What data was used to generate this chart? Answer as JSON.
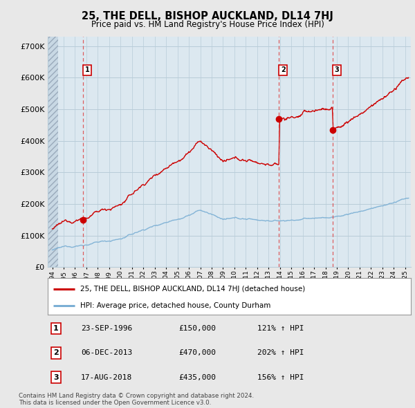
{
  "title": "25, THE DELL, BISHOP AUCKLAND, DL14 7HJ",
  "subtitle": "Price paid vs. HM Land Registry's House Price Index (HPI)",
  "ylabel_values": [
    "£0",
    "£100K",
    "£200K",
    "£300K",
    "£400K",
    "£500K",
    "£600K",
    "£700K"
  ],
  "yticks": [
    0,
    100000,
    200000,
    300000,
    400000,
    500000,
    600000,
    700000
  ],
  "ylim": [
    0,
    730000
  ],
  "xlim_start": 1993.6,
  "xlim_end": 2025.5,
  "hatch_end": 1994.5,
  "sale_dates": [
    1996.728,
    2013.924,
    2018.633
  ],
  "sale_prices": [
    150000,
    470000,
    435000
  ],
  "sale_labels": [
    "1",
    "2",
    "3"
  ],
  "red_line_color": "#cc0000",
  "blue_line_color": "#7bafd4",
  "dashed_line_color": "#dd4444",
  "background_color": "#e8e8e8",
  "plot_bg_color": "#dce8f0",
  "grid_color": "#b8ccd8",
  "legend_entry1": "25, THE DELL, BISHOP AUCKLAND, DL14 7HJ (detached house)",
  "legend_entry2": "HPI: Average price, detached house, County Durham",
  "table_entries": [
    {
      "num": "1",
      "date": "23-SEP-1996",
      "price": "£150,000",
      "hpi": "121% ↑ HPI"
    },
    {
      "num": "2",
      "date": "06-DEC-2013",
      "price": "£470,000",
      "hpi": "202% ↑ HPI"
    },
    {
      "num": "3",
      "date": "17-AUG-2018",
      "price": "£435,000",
      "hpi": "156% ↑ HPI"
    }
  ],
  "footnote1": "Contains HM Land Registry data © Crown copyright and database right 2024.",
  "footnote2": "This data is licensed under the Open Government Licence v3.0.",
  "xtick_years": [
    1994,
    1995,
    1996,
    1997,
    1998,
    1999,
    2000,
    2001,
    2002,
    2003,
    2004,
    2005,
    2006,
    2007,
    2008,
    2009,
    2010,
    2011,
    2012,
    2013,
    2014,
    2015,
    2016,
    2017,
    2018,
    2019,
    2020,
    2021,
    2022,
    2023,
    2024,
    2025
  ]
}
